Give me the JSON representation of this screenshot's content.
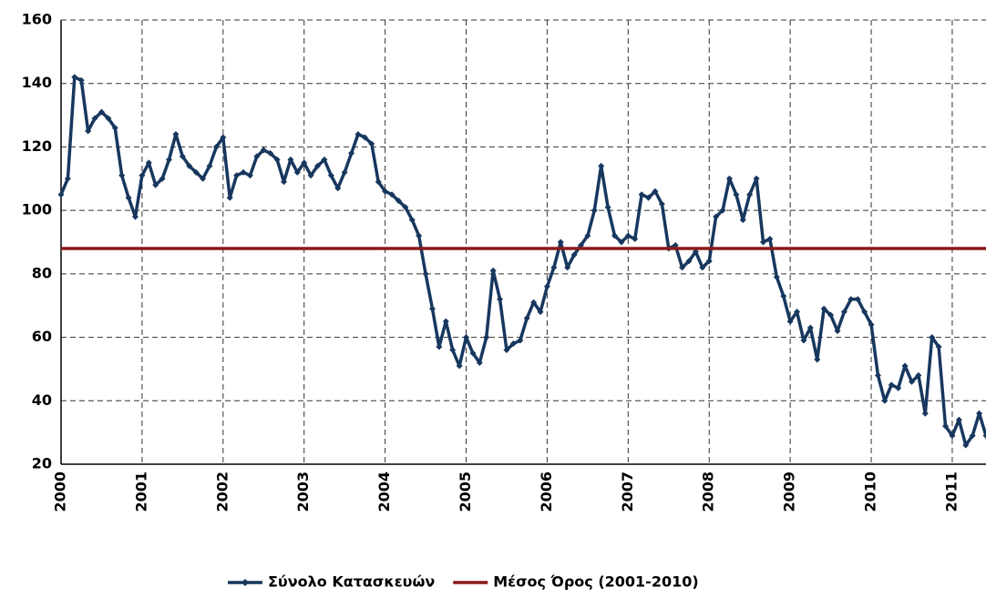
{
  "chart_data": {
    "type": "line",
    "categories": [
      "2000",
      null,
      null,
      null,
      null,
      null,
      null,
      null,
      null,
      null,
      null,
      null,
      "2001",
      null,
      null,
      null,
      null,
      null,
      null,
      null,
      null,
      null,
      null,
      null,
      "2002",
      null,
      null,
      null,
      null,
      null,
      null,
      null,
      null,
      null,
      null,
      null,
      "2003",
      null,
      null,
      null,
      null,
      null,
      null,
      null,
      null,
      null,
      null,
      null,
      "2004",
      null,
      null,
      null,
      null,
      null,
      null,
      null,
      null,
      null,
      null,
      null,
      "2005",
      null,
      null,
      null,
      null,
      null,
      null,
      null,
      null,
      null,
      null,
      null,
      "2006",
      null,
      null,
      null,
      null,
      null,
      null,
      null,
      null,
      null,
      null,
      null,
      "2007",
      null,
      null,
      null,
      null,
      null,
      null,
      null,
      null,
      null,
      null,
      null,
      "2008",
      null,
      null,
      null,
      null,
      null,
      null,
      null,
      null,
      null,
      null,
      null,
      "2009",
      null,
      null,
      null,
      null,
      null,
      null,
      null,
      null,
      null,
      null,
      null,
      "2010",
      null,
      null,
      null,
      null,
      null,
      null,
      null,
      null,
      null,
      null,
      null,
      "2011",
      null,
      null,
      null,
      null,
      null
    ],
    "series": [
      {
        "name": "Σύνολο Κατασκευών",
        "color": "#17375e",
        "values": [
          105,
          110,
          142,
          141,
          125,
          129,
          131,
          129,
          126,
          111,
          104,
          98,
          111,
          115,
          108,
          110,
          116,
          124,
          117,
          114,
          112,
          110,
          114,
          120,
          123,
          104,
          111,
          112,
          111,
          117,
          119,
          118,
          116,
          109,
          116,
          112,
          115,
          111,
          114,
          116,
          111,
          107,
          112,
          118,
          124,
          123,
          121,
          109,
          106,
          105,
          103,
          101,
          97,
          92,
          80,
          69,
          57,
          65,
          56,
          51,
          60,
          55,
          52,
          60,
          81,
          72,
          56,
          58,
          59,
          66,
          71,
          68,
          76,
          82,
          90,
          82,
          86,
          89,
          92,
          100,
          114,
          101,
          92,
          90,
          92,
          91,
          105,
          104,
          106,
          102,
          88,
          89,
          82,
          84,
          87,
          82,
          84,
          98,
          100,
          110,
          105,
          97,
          105,
          110,
          90,
          91,
          79,
          73,
          65,
          68,
          59,
          63,
          53,
          69,
          67,
          62,
          68,
          72,
          72,
          68,
          64,
          48,
          40,
          45,
          44,
          51,
          46,
          48,
          36,
          60,
          57,
          32,
          29,
          34,
          26,
          29,
          36,
          29
        ]
      },
      {
        "name": "Μέσος Όρος (2001-2010)",
        "color": "#8b1a1a",
        "value": 88
      }
    ],
    "ylim": [
      20,
      160
    ],
    "yticks": [
      20,
      40,
      60,
      80,
      100,
      120,
      140,
      160
    ],
    "grid": true
  }
}
